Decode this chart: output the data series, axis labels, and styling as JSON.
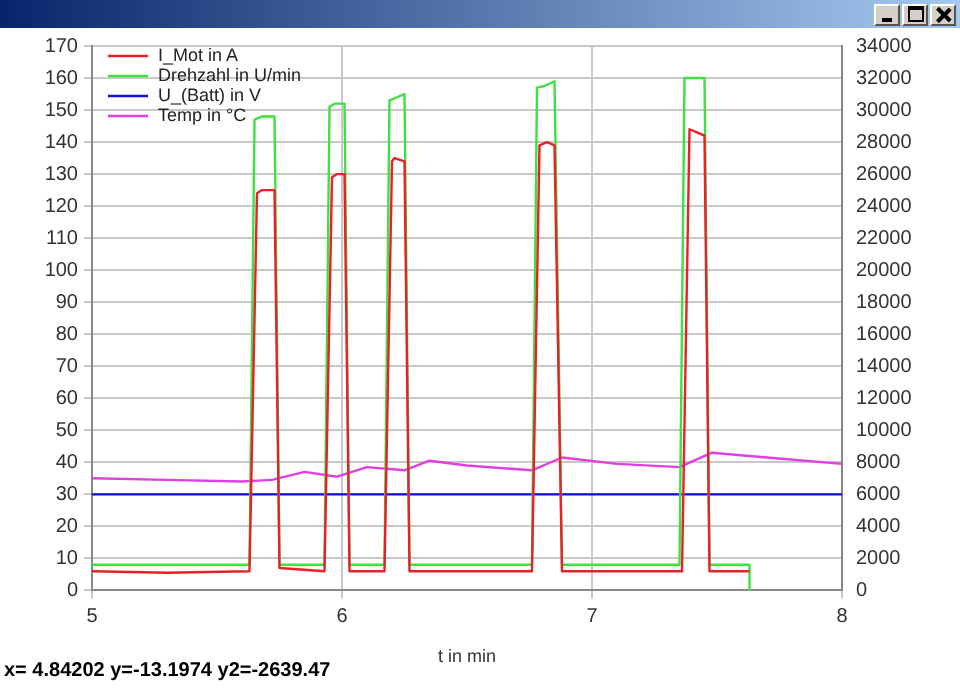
{
  "chart_data": {
    "type": "line",
    "xlabel": "t in min",
    "annotations": [
      "x= 4.84202 y=-13.1974 y2=-2639.47"
    ],
    "xlim": [
      5,
      8
    ],
    "xticks": [
      5,
      6,
      7,
      8
    ],
    "ylim": [
      0,
      170
    ],
    "yticks": [
      0,
      10,
      20,
      30,
      40,
      50,
      60,
      70,
      80,
      90,
      100,
      110,
      120,
      130,
      140,
      150,
      160,
      170
    ],
    "y2lim": [
      0,
      34000
    ],
    "y2ticks": [
      0,
      2000,
      4000,
      6000,
      8000,
      10000,
      12000,
      14000,
      16000,
      18000,
      20000,
      22000,
      24000,
      26000,
      28000,
      30000,
      32000,
      34000
    ],
    "grid": true,
    "legend": "top left",
    "marker": "none",
    "line_style": "solid",
    "series": [
      {
        "name": "I_Mot in A",
        "color": "#e8202a",
        "x": [
          5,
          5.3,
          5.63,
          5.66,
          5.68,
          5.73,
          5.75,
          5.93,
          5.96,
          5.98,
          6.01,
          6.03,
          6.17,
          6.2,
          6.21,
          6.25,
          6.27,
          6.76,
          6.79,
          6.82,
          6.85,
          6.88,
          7.36,
          7.39,
          7.42,
          7.45,
          7.47,
          7.63
        ],
        "values": [
          6,
          5.5,
          6,
          124,
          125,
          125,
          7,
          6,
          129,
          130,
          130,
          6,
          6,
          134,
          135,
          134,
          6,
          6,
          139,
          140,
          139,
          6,
          6,
          144,
          143,
          142,
          6,
          6
        ]
      },
      {
        "name": "Drehzahl in U/min",
        "color": "#40e040",
        "axis": "y2",
        "x": [
          5,
          5.63,
          5.65,
          5.68,
          5.73,
          5.75,
          5.93,
          5.95,
          5.97,
          6.01,
          6.03,
          6.17,
          6.19,
          6.22,
          6.25,
          6.27,
          6.76,
          6.78,
          6.81,
          6.85,
          6.88,
          7.35,
          7.37,
          7.45,
          7.47,
          7.63,
          7.63
        ],
        "values": [
          1600,
          1600,
          29400,
          29600,
          29600,
          1600,
          1600,
          30200,
          30400,
          30400,
          1600,
          1600,
          30600,
          30800,
          31000,
          1600,
          1600,
          31400,
          31500,
          31800,
          1600,
          1600,
          32000,
          32000,
          1600,
          1600,
          0
        ]
      },
      {
        "name": "U_(Batt) in V",
        "color": "#1010d0",
        "x": [
          5,
          8
        ],
        "values": [
          30,
          30
        ]
      },
      {
        "name": "Temp in °C",
        "color": "#e040e0",
        "x": [
          5,
          5.3,
          5.6,
          5.72,
          5.85,
          5.98,
          6.1,
          6.25,
          6.35,
          6.5,
          6.76,
          6.88,
          7.1,
          7.35,
          7.48,
          7.7,
          8
        ],
        "values": [
          35,
          34.5,
          34,
          34.5,
          37,
          35.5,
          38.5,
          37.5,
          40.5,
          39,
          37.5,
          41.5,
          39.5,
          38.5,
          43,
          41.5,
          39.5
        ]
      }
    ]
  }
}
